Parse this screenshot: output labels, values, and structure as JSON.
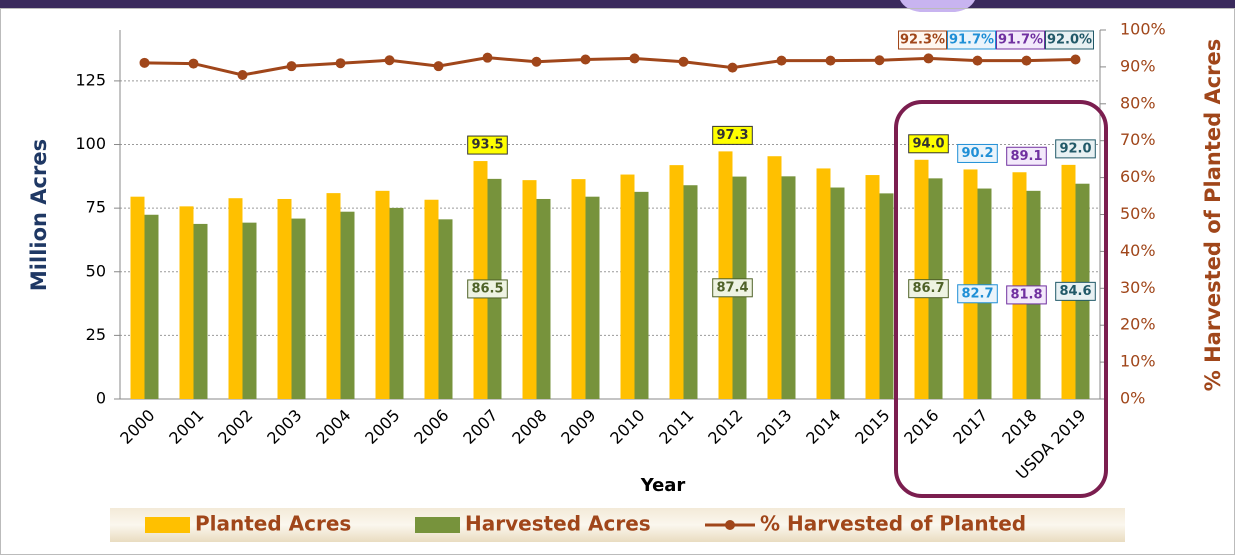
{
  "chart_data": {
    "type": "bar",
    "categories": [
      "2000",
      "2001",
      "2002",
      "2003",
      "2004",
      "2005",
      "2006",
      "2007",
      "2008",
      "2009",
      "2010",
      "2011",
      "2012",
      "2013",
      "2014",
      "2015",
      "2016",
      "2017",
      "2018",
      "USDA 2019"
    ],
    "x_label": "Year",
    "y_label": "Million Acres",
    "y2_label": "% Harvested of Planted Acres",
    "ylim": [
      0,
      145
    ],
    "yticks": [
      0,
      25,
      50,
      75,
      100,
      125
    ],
    "y2lim": [
      0,
      100
    ],
    "y2ticks": [
      {
        "value": 0,
        "label": "0%"
      },
      {
        "value": 10,
        "label": "10%"
      },
      {
        "value": 20,
        "label": "20%"
      },
      {
        "value": 30,
        "label": "30%"
      },
      {
        "value": 40,
        "label": "40%"
      },
      {
        "value": 50,
        "label": "50%"
      },
      {
        "value": 60,
        "label": "60%"
      },
      {
        "value": 70,
        "label": "70%"
      },
      {
        "value": 80,
        "label": "80%"
      },
      {
        "value": 90,
        "label": "90%"
      },
      {
        "value": 100,
        "label": "100%"
      }
    ],
    "grid": true,
    "legend": "bottom",
    "series": [
      {
        "name": "Planted Acres",
        "color": "#ffc000",
        "values": [
          79.5,
          75.7,
          78.9,
          78.6,
          80.9,
          81.8,
          78.3,
          93.5,
          86.0,
          86.4,
          88.2,
          91.9,
          97.3,
          95.4,
          90.6,
          88.0,
          94.0,
          90.2,
          89.1,
          92.0
        ],
        "value_labels": [
          null,
          null,
          null,
          null,
          null,
          null,
          null,
          "93.5",
          null,
          null,
          null,
          null,
          "97.3",
          null,
          null,
          null,
          "94.0",
          "90.2",
          "89.1",
          "92.0"
        ]
      },
      {
        "name": "Harvested Acres",
        "color": "#77933c",
        "values": [
          72.4,
          68.8,
          69.3,
          70.9,
          73.6,
          75.1,
          70.6,
          86.5,
          78.6,
          79.5,
          81.4,
          84.0,
          87.4,
          87.5,
          83.1,
          80.8,
          86.7,
          82.7,
          81.8,
          84.6
        ],
        "value_labels": [
          null,
          null,
          null,
          null,
          null,
          null,
          null,
          "86.5",
          null,
          null,
          null,
          null,
          "87.4",
          null,
          null,
          null,
          "86.7",
          "82.7",
          "81.8",
          "84.6"
        ]
      },
      {
        "name": "% Harvested of Planted",
        "color": "#a0461a",
        "type": "line",
        "axis": "y2",
        "values": [
          91.1,
          90.9,
          87.8,
          90.2,
          91.0,
          91.8,
          90.2,
          92.5,
          91.4,
          92.0,
          92.3,
          91.4,
          89.8,
          91.7,
          91.7,
          91.8,
          92.3,
          91.7,
          91.7,
          92.0
        ],
        "value_labels": [
          null,
          null,
          null,
          null,
          null,
          null,
          null,
          null,
          null,
          null,
          null,
          null,
          null,
          null,
          null,
          null,
          "92.3%",
          "91.7%",
          "91.7%",
          "92.0%"
        ]
      }
    ]
  }
}
